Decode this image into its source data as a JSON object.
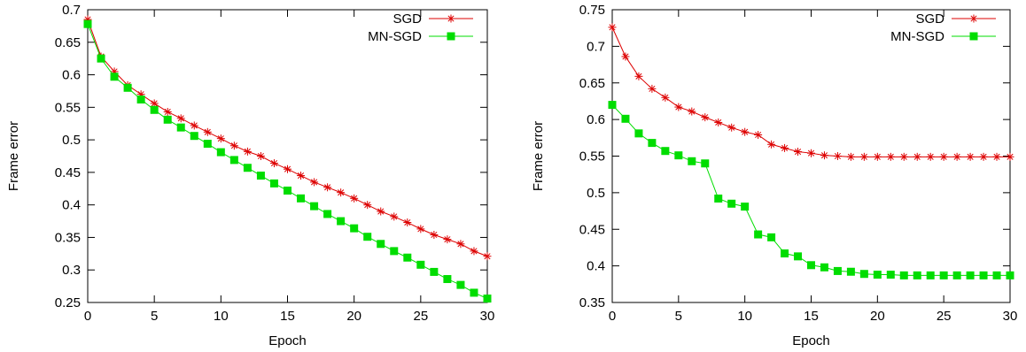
{
  "chart_data": [
    {
      "type": "line",
      "title": "",
      "xlabel": "Epoch",
      "ylabel": "Frame error",
      "xlim": [
        0,
        30
      ],
      "ylim": [
        0.25,
        0.7
      ],
      "xticks": [
        0,
        5,
        10,
        15,
        20,
        25,
        30
      ],
      "yticks": [
        0.25,
        0.3,
        0.35,
        0.4,
        0.45,
        0.5,
        0.55,
        0.6,
        0.65,
        0.7
      ],
      "grid": false,
      "legend_position": "top-right",
      "x": [
        0,
        1,
        2,
        3,
        4,
        5,
        6,
        7,
        8,
        9,
        10,
        11,
        12,
        13,
        14,
        15,
        16,
        17,
        18,
        19,
        20,
        21,
        22,
        23,
        24,
        25,
        26,
        27,
        28,
        29,
        30
      ],
      "series": [
        {
          "name": "SGD",
          "color": "#dd0000",
          "marker": "asterisk",
          "values": [
            0.685,
            0.628,
            0.605,
            0.584,
            0.57,
            0.556,
            0.543,
            0.533,
            0.522,
            0.512,
            0.502,
            0.491,
            0.482,
            0.475,
            0.464,
            0.455,
            0.445,
            0.435,
            0.427,
            0.419,
            0.41,
            0.4,
            0.39,
            0.382,
            0.373,
            0.363,
            0.354,
            0.347,
            0.34,
            0.329,
            0.321
          ]
        },
        {
          "name": "MN-SGD",
          "color": "#00dd00",
          "marker": "square",
          "values": [
            0.678,
            0.625,
            0.597,
            0.58,
            0.562,
            0.546,
            0.531,
            0.519,
            0.506,
            0.494,
            0.481,
            0.469,
            0.457,
            0.445,
            0.433,
            0.422,
            0.41,
            0.398,
            0.386,
            0.375,
            0.364,
            0.351,
            0.34,
            0.329,
            0.319,
            0.308,
            0.297,
            0.286,
            0.277,
            0.265,
            0.256
          ]
        }
      ]
    },
    {
      "type": "line",
      "title": "",
      "xlabel": "Epoch",
      "ylabel": "Frame error",
      "xlim": [
        0,
        30
      ],
      "ylim": [
        0.35,
        0.75
      ],
      "xticks": [
        0,
        5,
        10,
        15,
        20,
        25,
        30
      ],
      "yticks": [
        0.35,
        0.4,
        0.45,
        0.5,
        0.55,
        0.6,
        0.65,
        0.7,
        0.75
      ],
      "grid": false,
      "legend_position": "top-right",
      "x": [
        0,
        1,
        2,
        3,
        4,
        5,
        6,
        7,
        8,
        9,
        10,
        11,
        12,
        13,
        14,
        15,
        16,
        17,
        18,
        19,
        20,
        21,
        22,
        23,
        24,
        25,
        26,
        27,
        28,
        29,
        30
      ],
      "series": [
        {
          "name": "SGD",
          "color": "#dd0000",
          "marker": "asterisk",
          "values": [
            0.726,
            0.686,
            0.659,
            0.642,
            0.63,
            0.617,
            0.611,
            0.603,
            0.596,
            0.589,
            0.583,
            0.579,
            0.566,
            0.561,
            0.556,
            0.554,
            0.551,
            0.55,
            0.549,
            0.549,
            0.549,
            0.549,
            0.549,
            0.549,
            0.549,
            0.549,
            0.549,
            0.549,
            0.549,
            0.549,
            0.549
          ]
        },
        {
          "name": "MN-SGD",
          "color": "#00dd00",
          "marker": "square",
          "values": [
            0.62,
            0.601,
            0.581,
            0.568,
            0.557,
            0.551,
            0.543,
            0.54,
            0.492,
            0.485,
            0.481,
            0.443,
            0.439,
            0.417,
            0.413,
            0.401,
            0.398,
            0.393,
            0.392,
            0.389,
            0.388,
            0.388,
            0.387,
            0.387,
            0.387,
            0.387,
            0.387,
            0.387,
            0.387,
            0.387,
            0.387
          ]
        }
      ]
    }
  ]
}
